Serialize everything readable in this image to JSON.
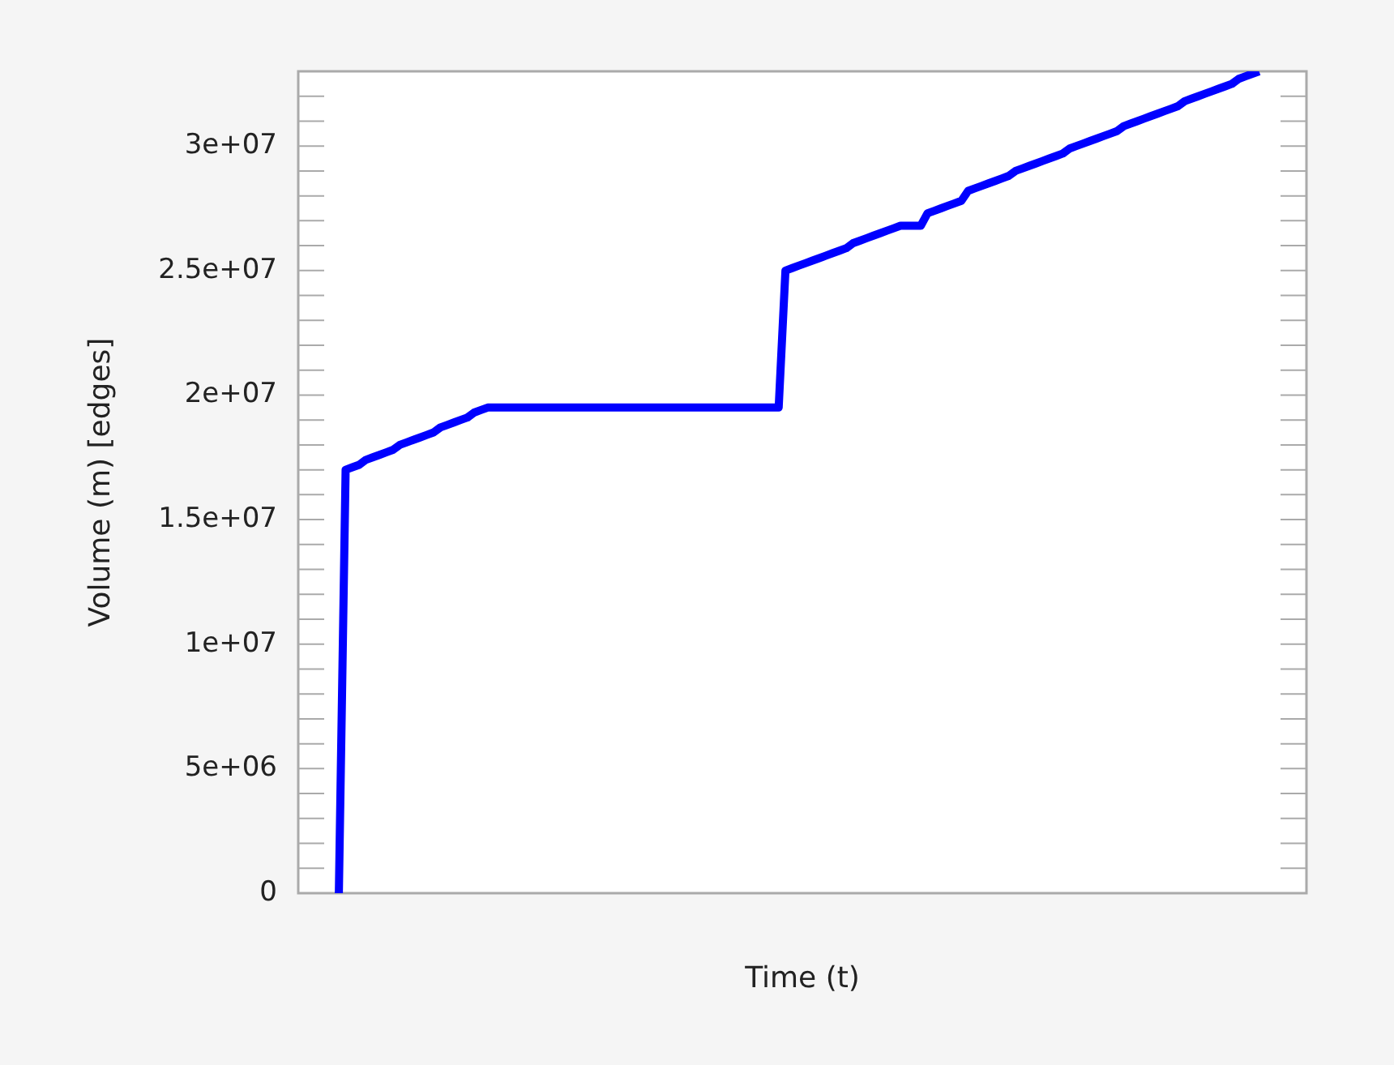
{
  "chart_data": {
    "type": "line",
    "xlabel": "Time (t)",
    "ylabel": "Volume (m) [edges]",
    "color": "#0000ff",
    "tick_labels": "y",
    "grid": false,
    "legend": false,
    "categories": [
      null,
      null,
      null,
      null,
      null,
      null,
      null,
      null,
      null,
      null,
      null,
      null,
      null,
      null,
      null,
      null,
      null,
      null,
      null,
      null,
      null,
      null,
      null,
      null,
      null,
      null,
      null,
      null,
      null,
      null,
      null,
      null,
      null,
      null,
      null,
      null,
      null,
      null,
      null,
      null,
      null,
      null,
      null,
      null,
      null,
      null,
      null,
      null,
      null,
      null,
      null,
      null,
      null,
      null,
      null,
      null,
      null,
      null,
      null,
      null,
      null,
      null,
      null,
      null,
      null,
      null,
      null,
      null,
      null,
      null,
      null,
      null,
      null,
      null,
      null,
      null,
      null,
      null,
      null,
      null,
      null,
      null,
      null,
      null,
      null,
      null,
      null,
      null,
      null,
      null,
      null,
      null,
      null,
      null,
      null,
      null,
      null,
      null,
      null,
      null,
      null,
      null,
      null,
      null,
      null,
      null,
      null,
      null,
      null,
      null,
      null,
      null,
      null,
      null,
      null,
      null,
      null,
      null,
      null,
      null,
      null,
      null,
      null,
      null,
      null,
      null,
      null,
      null,
      null,
      null,
      null,
      null,
      null,
      null,
      null,
      null,
      null,
      null,
      null,
      null,
      null,
      null,
      null,
      null,
      null,
      null,
      null,
      null,
      null,
      null
    ],
    "values": [
      null,
      null,
      null,
      null,
      null,
      null,
      0,
      17000000,
      17100000,
      17200000,
      17400000,
      17500000,
      17600000,
      17700000,
      17800000,
      18000000,
      18100000,
      18200000,
      18300000,
      18400000,
      18500000,
      18700000,
      18800000,
      18900000,
      19000000,
      19100000,
      19300000,
      19400000,
      19500000,
      19500000,
      19500000,
      19500000,
      19500000,
      19500000,
      19500000,
      19500000,
      19500000,
      19500000,
      19500000,
      19500000,
      19500000,
      19500000,
      19500000,
      19500000,
      19500000,
      19500000,
      19500000,
      19500000,
      19500000,
      19500000,
      19500000,
      19500000,
      19500000,
      19500000,
      19500000,
      19500000,
      19500000,
      19500000,
      19500000,
      19500000,
      19500000,
      19500000,
      19500000,
      19500000,
      19500000,
      19500000,
      19500000,
      19500000,
      19500000,
      19500000,
      19500000,
      19500000,
      25000000,
      25100000,
      25200000,
      25300000,
      25400000,
      25500000,
      25600000,
      25700000,
      25800000,
      25900000,
      26100000,
      26200000,
      26300000,
      26400000,
      26500000,
      26600000,
      26700000,
      26800000,
      26800000,
      26800000,
      26800000,
      27300000,
      27400000,
      27500000,
      27600000,
      27700000,
      27800000,
      28200000,
      28300000,
      28400000,
      28500000,
      28600000,
      28700000,
      28800000,
      29000000,
      29100000,
      29200000,
      29300000,
      29400000,
      29500000,
      29600000,
      29700000,
      29900000,
      30000000,
      30100000,
      30200000,
      30300000,
      30400000,
      30500000,
      30600000,
      30800000,
      30900000,
      31000000,
      31100000,
      31200000,
      31300000,
      31400000,
      31500000,
      31600000,
      31800000,
      31900000,
      32000000,
      32100000,
      32200000,
      32300000,
      32400000,
      32500000,
      32700000,
      32800000,
      32900000,
      33000000,
      null,
      null,
      null,
      null,
      null,
      null,
      null
    ],
    "ylim": [
      0,
      33000000
    ],
    "yticks": [
      0,
      {
        "value": 1000000,
        "label": null
      },
      {
        "value": 2000000,
        "label": null
      },
      {
        "value": 3000000,
        "label": null
      },
      {
        "value": 4000000,
        "label": null
      },
      {
        "value": 5000000,
        "label": "5e+06"
      },
      {
        "value": 6000000,
        "label": null
      },
      {
        "value": 7000000,
        "label": null
      },
      {
        "value": 8000000,
        "label": null
      },
      {
        "value": 9000000,
        "label": null
      },
      {
        "value": 10000000,
        "label": "1e+07"
      },
      {
        "value": 11000000,
        "label": null
      },
      {
        "value": 12000000,
        "label": null
      },
      {
        "value": 13000000,
        "label": null
      },
      {
        "value": 14000000,
        "label": null
      },
      {
        "value": 15000000,
        "label": "1.5e+07"
      },
      {
        "value": 16000000,
        "label": null
      },
      {
        "value": 17000000,
        "label": null
      },
      {
        "value": 18000000,
        "label": null
      },
      {
        "value": 19000000,
        "label": null
      },
      {
        "value": 20000000,
        "label": "2e+07"
      },
      {
        "value": 21000000,
        "label": null
      },
      {
        "value": 22000000,
        "label": null
      },
      {
        "value": 23000000,
        "label": null
      },
      {
        "value": 24000000,
        "label": null
      },
      {
        "value": 25000000,
        "label": "2.5e+07"
      },
      {
        "value": 26000000,
        "label": null
      },
      {
        "value": 27000000,
        "label": null
      },
      {
        "value": 28000000,
        "label": null
      },
      {
        "value": 29000000,
        "label": null
      },
      {
        "value": 30000000,
        "label": "3e+07"
      },
      {
        "value": 31000000,
        "label": null
      },
      {
        "value": 32000000,
        "label": null
      },
      {
        "value": 33000000,
        "label": null
      }
    ]
  }
}
